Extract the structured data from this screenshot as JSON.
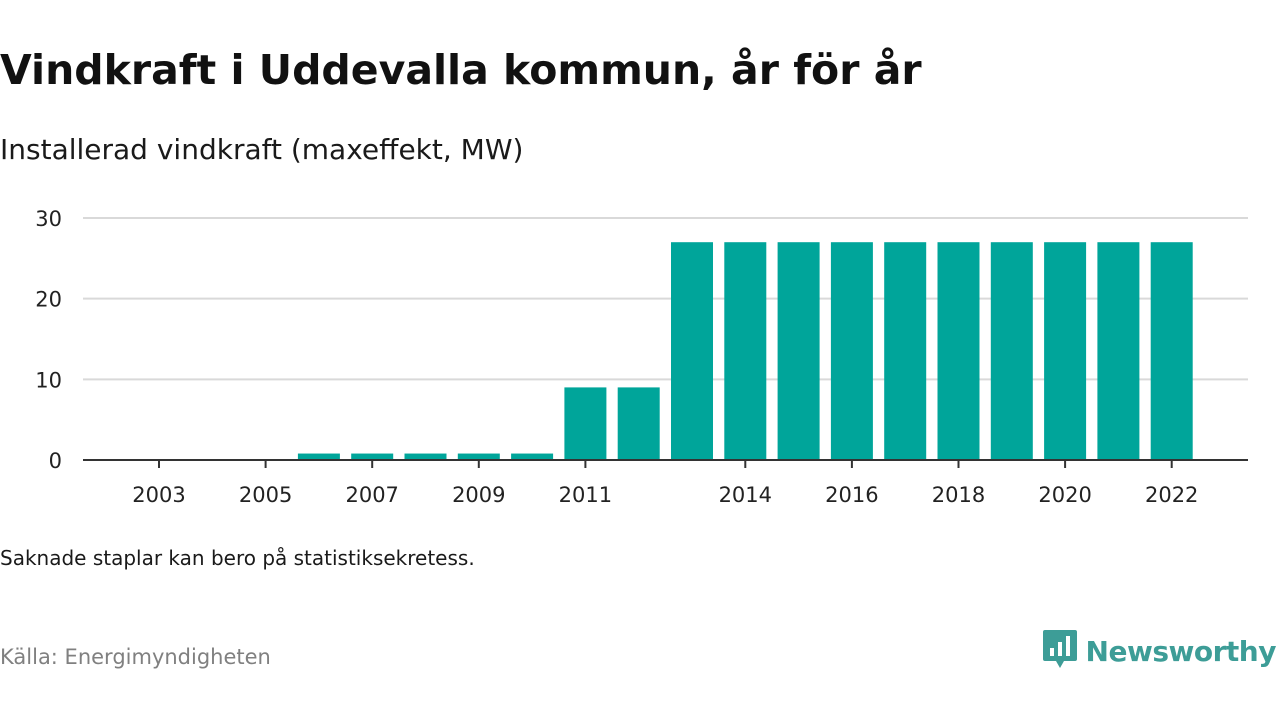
{
  "title": "Vindkraft i Uddevalla kommun, år för år",
  "subtitle": "Installerad vindkraft (maxeffekt, MW)",
  "note": "Saknade staplar kan bero på statistiksekretess.",
  "source": "Källa: Energimyndigheten",
  "brand": {
    "name": "Newsworthy",
    "icon": "newsworthy-logo-icon",
    "color": "#3d9d97"
  },
  "colors": {
    "bar": "#00a59a",
    "grid": "#d9d9d9",
    "axis": "#333333"
  },
  "chart_data": {
    "type": "bar",
    "categories": [
      "2003",
      "2004",
      "2005",
      "2006",
      "2007",
      "2008",
      "2009",
      "2010",
      "2011",
      "2012",
      "2013",
      "2014",
      "2015",
      "2016",
      "2017",
      "2018",
      "2019",
      "2020",
      "2021",
      "2022"
    ],
    "values": [
      0,
      0,
      0,
      0.8,
      0.8,
      0.8,
      0.8,
      0.8,
      9,
      9,
      27,
      27,
      27,
      27,
      27,
      27,
      27,
      27,
      27,
      27
    ],
    "x_tick_labels": [
      "2003",
      "2005",
      "2007",
      "2009",
      "2011",
      "2014",
      "2016",
      "2018",
      "2020",
      "2022"
    ],
    "y_ticks": [
      0,
      10,
      20,
      30
    ],
    "ylim": [
      0,
      30
    ],
    "xlabel": "",
    "ylabel": "",
    "grid": true,
    "legend": "none"
  }
}
